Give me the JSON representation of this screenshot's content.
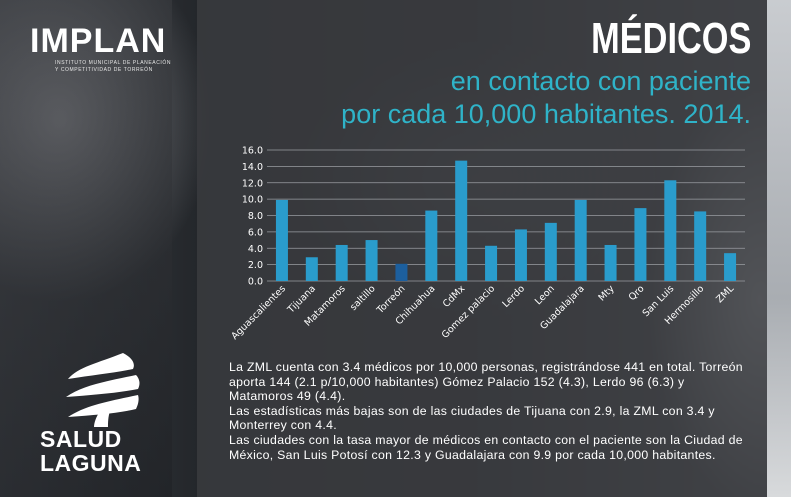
{
  "brand": {
    "logo": "IMPLAN",
    "logo_sub": "INSTITUTO MUNICIPAL DE PLANEACIÓN Y COMPETITIVIDAD DE TORREÓN",
    "partner_line1": "SALUD",
    "partner_line2": "LAGUNA"
  },
  "header": {
    "title": "MÉDICOS",
    "subtitle_line1": "en contacto con paciente",
    "subtitle_line2": "por cada 10,000 habitantes. 2014."
  },
  "colors": {
    "bar": "#2a9ccc",
    "bar_highlight": "#1c5f9e",
    "accent": "#2fb3c8"
  },
  "chart_data": {
    "type": "bar",
    "categories": [
      "Aguascalientes",
      "Tijuana",
      "Matamoros",
      "saltillo",
      "Torreón",
      "Chihuahua",
      "CdMx",
      "Gomez palacio",
      "Lerdo",
      "Leon",
      "Guadalajara",
      "Mty",
      "Qro",
      "San Luis",
      "Hermosillo",
      "ZML"
    ],
    "values": [
      9.9,
      2.9,
      4.4,
      5.0,
      2.1,
      8.6,
      14.7,
      4.3,
      6.3,
      7.1,
      9.9,
      4.4,
      8.9,
      12.3,
      8.5,
      3.4
    ],
    "highlight": "Torreón",
    "ylim": [
      0,
      16
    ],
    "yticks": [
      "0.0",
      "2.0",
      "4.0",
      "6.0",
      "8.0",
      "10.0",
      "12.0",
      "14.0",
      "16.0"
    ],
    "title": "",
    "xlabel": "",
    "ylabel": ""
  },
  "description": {
    "p1": "La ZML cuenta con 3.4 médicos por 10,000 personas, registrándose 441 en total. Torreón aporta 144 (2.1 p/10,000 habitantes) Gómez Palacio 152 (4.3), Lerdo 96 (6.3) y Matamoros 49 (4.4).",
    "p2": "Las estadísticas más bajas son de las ciudades de Tijuana con 2.9, la ZML con 3.4 y Monterrey con 4.4.",
    "p3": "Las ciudades con la tasa mayor de médicos en contacto con el paciente son la Ciudad de México, San Luis Potosí con 12.3 y Guadalajara con 9.9 por cada 10,000 habitantes."
  }
}
